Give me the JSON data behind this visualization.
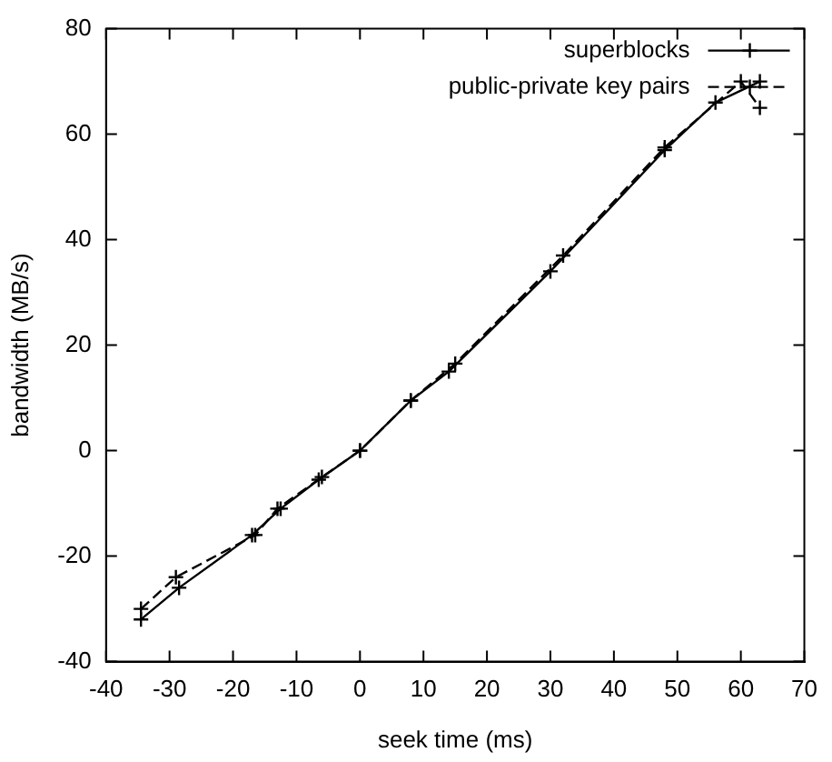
{
  "chart_data": {
    "type": "line",
    "xlabel": "seek time (ms)",
    "ylabel": "bandwidth (MB/s)",
    "xlim": [
      -40,
      70
    ],
    "xticks": [
      -40,
      -30,
      -20,
      -10,
      0,
      10,
      20,
      30,
      40,
      50,
      60,
      70
    ],
    "ylim": [
      -40,
      80
    ],
    "yticks": [
      -40,
      -20,
      0,
      20,
      40,
      60,
      80
    ],
    "grid": false,
    "legend": "top right",
    "series": [
      {
        "name": "superblocks",
        "color": "#000000",
        "marker": "cross",
        "line_style": "solid",
        "x": [
          -34.5,
          -28.5,
          -17,
          -12.5,
          -6.5,
          0,
          8,
          14,
          30,
          48,
          56,
          63
        ],
        "values": [
          -32,
          -26,
          -16,
          -11,
          -5.5,
          0,
          9.5,
          15,
          34,
          57,
          66,
          70
        ]
      },
      {
        "name": "public-private key pairs",
        "color": "#000000",
        "marker": "cross",
        "line_style": "dashed",
        "x": [
          -34.5,
          -29,
          -16.5,
          -13,
          -6,
          0,
          8,
          15,
          32,
          48,
          60,
          63
        ],
        "values": [
          -30,
          -24,
          -16,
          -11,
          -5,
          0,
          9.5,
          16.5,
          37,
          57.5,
          70,
          65
        ]
      }
    ]
  }
}
